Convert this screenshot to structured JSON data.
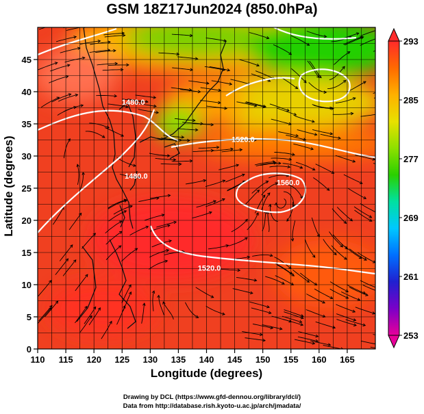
{
  "title": "GSM 18Z17Jun2024 (850.0hPa)",
  "xlabel": "Longitude (degrees)",
  "ylabel": "Latitude  (degrees)",
  "credits": [
    "Drawing by DCL (https://www.gfd-dennou.org/library/dcl/)",
    "Data from http://database.rish.kyoto-u.ac.jp/arch/jmadata/"
  ],
  "chart_data": {
    "type": "heatmap",
    "title": "GSM 18Z17Jun2024 (850.0hPa)",
    "xlabel": "Longitude (degrees)",
    "ylabel": "Latitude  (degrees)",
    "xlim": [
      110,
      170
    ],
    "ylim": [
      0,
      50
    ],
    "xticks": [
      110,
      115,
      120,
      125,
      130,
      135,
      140,
      145,
      150,
      155,
      160,
      165
    ],
    "yticks": [
      0,
      5,
      10,
      15,
      20,
      25,
      30,
      35,
      40,
      45
    ],
    "grid": true,
    "colorbar": {
      "min": 253,
      "max": 293,
      "ticks": [
        293,
        285,
        277,
        269,
        261,
        253
      ],
      "colors": [
        "#e8009a",
        "#7a00c8",
        "#2020d0",
        "#0070ff",
        "#00c8ff",
        "#00e0a0",
        "#2ad000",
        "#8ee000",
        "#e8e000",
        "#ffb000",
        "#ff6a00",
        "#ff2a2a"
      ]
    },
    "contour_labels": [
      {
        "text": "1520.0",
        "lon": 146.5,
        "lat": 32.2
      },
      {
        "text": "1520.0",
        "lon": 140.5,
        "lat": 12.2
      },
      {
        "text": "1560.0",
        "lon": 154.5,
        "lat": 25.5
      },
      {
        "text": "1480.0",
        "lon": 127.5,
        "lat": 26.5
      },
      {
        "text": "1480.0",
        "lon": 127.0,
        "lat": 38.0
      }
    ]
  }
}
